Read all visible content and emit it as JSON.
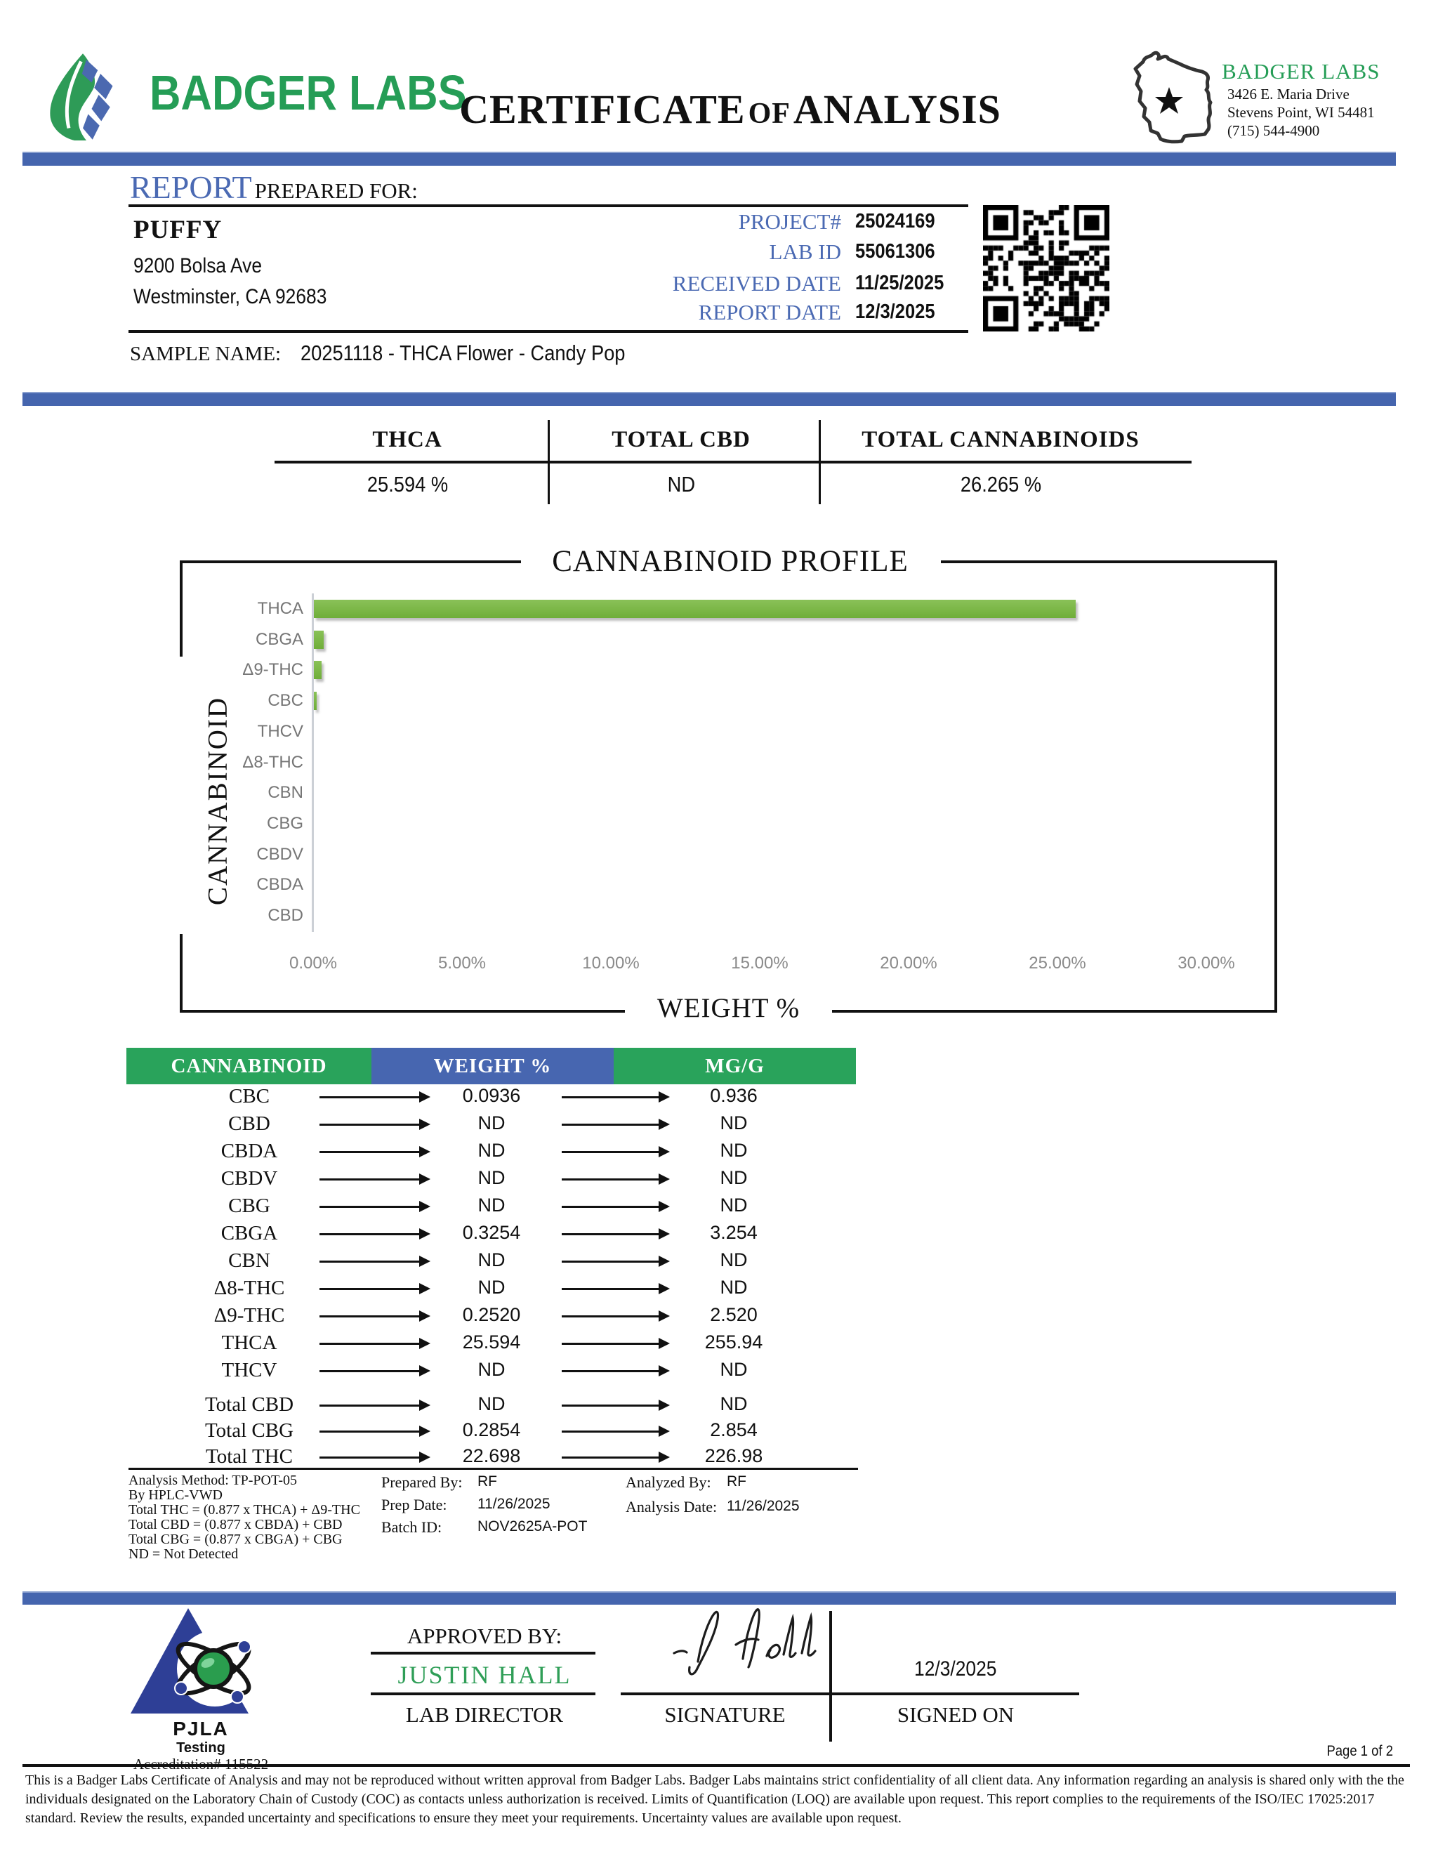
{
  "brand": {
    "logo_text": "BADGER LABS",
    "title_main": "CERTIFICATE",
    "title_of": "of",
    "title_analysis": "ANALYSIS",
    "lab_name": "BADGER LABS",
    "address_line1": "3426 E. Maria Drive",
    "address_line2": "Stevens Point, WI 54481",
    "phone": "(715) 544-4900"
  },
  "report": {
    "heading": "REPORT",
    "heading_rest": "PREPARED FOR:",
    "client_name": "PUFFY",
    "client_address1": "9200 Bolsa Ave",
    "client_address2": "Westminster, CA 92683",
    "meta": [
      {
        "label": "PROJECT#",
        "value": "25024169"
      },
      {
        "label": "LAB ID",
        "value": "55061306"
      },
      {
        "label": "RECEIVED DATE",
        "value": "11/25/2025"
      },
      {
        "label": "REPORT DATE",
        "value": "12/3/2025"
      }
    ],
    "sample_label": "SAMPLE NAME:",
    "sample_value": "20251118 - THCA Flower - Candy Pop"
  },
  "summary": {
    "columns": [
      {
        "header": "THCA",
        "value": "25.594 %"
      },
      {
        "header": "TOTAL CBD",
        "value": "ND"
      },
      {
        "header": "TOTAL CANNABINOIDS",
        "value": "26.265 %"
      }
    ]
  },
  "chart_data": {
    "type": "bar",
    "orientation": "horizontal",
    "title": "CANNABINOID PROFILE",
    "xlabel": "WEIGHT %",
    "ylabel": "CANNABINOID",
    "categories": [
      "THCA",
      "CBGA",
      "Δ9-THC",
      "CBC",
      "THCV",
      "Δ8-THC",
      "CBN",
      "CBG",
      "CBDV",
      "CBDA",
      "CBD"
    ],
    "values": [
      25.594,
      0.3254,
      0.252,
      0.0936,
      0,
      0,
      0,
      0,
      0,
      0,
      0
    ],
    "xlim": [
      0,
      30
    ],
    "tick_labels": [
      "0.00%",
      "5.00%",
      "10.00%",
      "15.00%",
      "20.00%",
      "25.00%",
      "30.00%"
    ],
    "grid": false,
    "bar_color": "#77b43e"
  },
  "results_table": {
    "headers": [
      "CANNABINOID",
      "WEIGHT %",
      "MG/G"
    ],
    "rows": [
      [
        "CBC",
        "0.0936",
        "0.936"
      ],
      [
        "CBD",
        "ND",
        "ND"
      ],
      [
        "CBDA",
        "ND",
        "ND"
      ],
      [
        "CBDV",
        "ND",
        "ND"
      ],
      [
        "CBG",
        "ND",
        "ND"
      ],
      [
        "CBGA",
        "0.3254",
        "3.254"
      ],
      [
        "CBN",
        "ND",
        "ND"
      ],
      [
        "Δ8-THC",
        "ND",
        "ND"
      ],
      [
        "Δ9-THC",
        "0.2520",
        "2.520"
      ],
      [
        "THCA",
        "25.594",
        "255.94"
      ],
      [
        "THCV",
        "ND",
        "ND"
      ]
    ],
    "totals": [
      [
        "Total CBD",
        "ND",
        "ND"
      ],
      [
        "Total CBG",
        "0.2854",
        "2.854"
      ],
      [
        "Total THC",
        "22.698",
        "226.98"
      ]
    ]
  },
  "footnotes": {
    "method_lines": [
      "Analysis Method: TP-POT-05",
      "By HPLC-VWD",
      "Total THC = (0.877 x  THCA) + Δ9-THC",
      "Total CBD = (0.877 x  CBDA) + CBD",
      "Total CBG = (0.877 x  CBGA) + CBG",
      "ND = Not Detected"
    ],
    "prepared": [
      {
        "label": "Prepared By:",
        "value": "RF"
      },
      {
        "label": "Prep Date:",
        "value": "11/26/2025"
      },
      {
        "label": "Batch ID:",
        "value": "NOV2625A-POT"
      }
    ],
    "analyzed": [
      {
        "label": "Analyzed By:",
        "value": "RF"
      },
      {
        "label": "Analysis Date:",
        "value": "11/26/2025"
      }
    ]
  },
  "footer": {
    "accreditation_org": "PJLA",
    "accreditation_sub": "Testing",
    "accreditation_num": "Accreditation# 115522",
    "approved_by_label": "APPROVED BY:",
    "approver": "JUSTIN HALL",
    "approver_title": "LAB DIRECTOR",
    "signature_label": "SIGNATURE",
    "signed_on_date": "12/3/2025",
    "signed_on_label": "SIGNED ON",
    "page_label": "Page 1 of 2",
    "disclaimer": "This is a Badger Labs Certificate of Analysis and may not be reproduced without written approval from Badger Labs. Badger Labs maintains strict confidentiality of all client data. Any information regarding an analysis is shared only with the the individuals designated on the Laboratory Chain of Custody (COC) as contacts unless authorization is received. Limits of Quantification (LOQ) are available upon request. This report complies to the requirements of the ISO/IEC 17025:2017 standard. Review the results, expanded uncertainty and specifications to ensure they meet your requirements. Uncertainty values are available upon request."
  },
  "colors": {
    "accent_blue": "#4565ae",
    "text_blue": "#4b6ab3",
    "brand_green": "#259d56",
    "table_green": "#29a35b",
    "table_blue": "#4766b0",
    "bar_green": "#77b43e",
    "pjla_navy": "#2e3f96",
    "label_grey": "#767676"
  }
}
